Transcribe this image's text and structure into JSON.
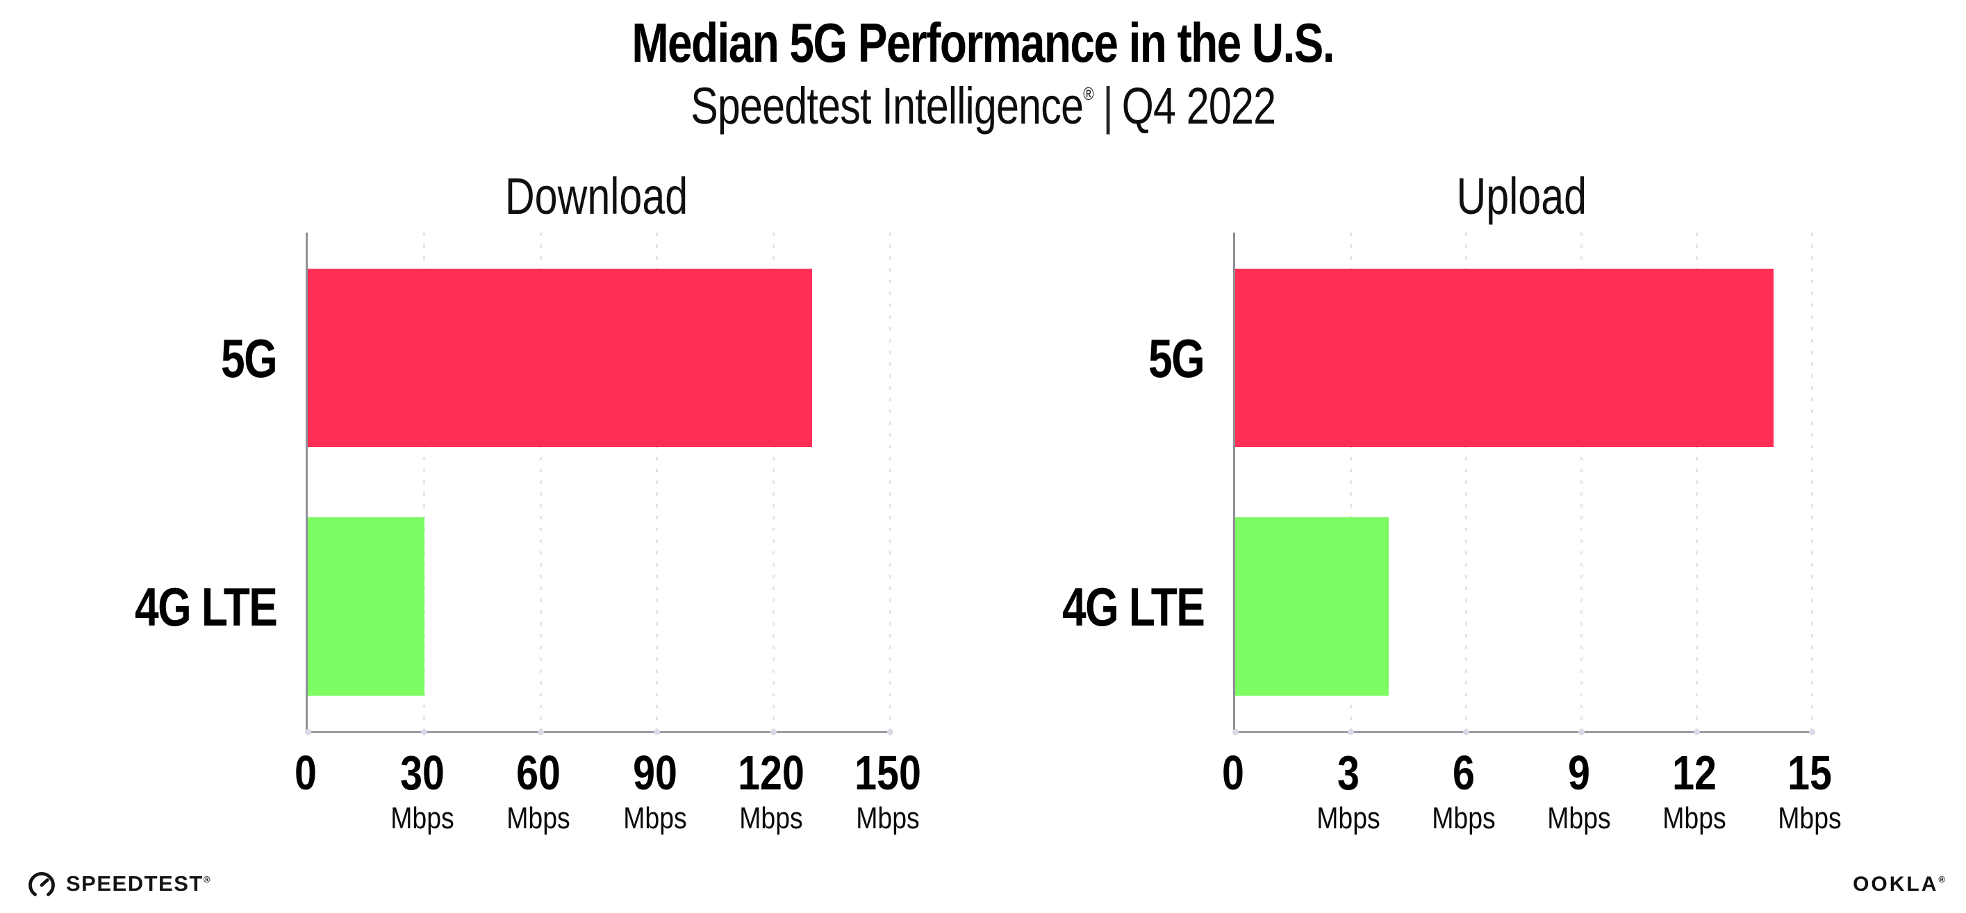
{
  "header": {
    "title": "Median 5G Performance in the U.S.",
    "subtitle_product": "Speedtest Intelligence",
    "subtitle_reg": "®",
    "subtitle_separator": "|",
    "subtitle_period": "Q4 2022"
  },
  "chart_data": [
    {
      "type": "bar",
      "orientation": "horizontal",
      "title": "Download",
      "categories": [
        "5G",
        "4G LTE"
      ],
      "values": [
        130,
        30
      ],
      "unit": "Mbps",
      "xlim": [
        0,
        150
      ],
      "xticks": [
        0,
        30,
        60,
        90,
        120,
        150
      ],
      "bar_colors": [
        "#FF2E56",
        "#7DFC64"
      ],
      "grid": "vertical-dotted",
      "legend": "none"
    },
    {
      "type": "bar",
      "orientation": "horizontal",
      "title": "Upload",
      "categories": [
        "5G",
        "4G LTE"
      ],
      "values": [
        14,
        4
      ],
      "unit": "Mbps",
      "xlim": [
        0,
        15
      ],
      "xticks": [
        0,
        3,
        6,
        9,
        12,
        15
      ],
      "bar_colors": [
        "#FF2E56",
        "#7DFC64"
      ],
      "grid": "vertical-dotted",
      "legend": "none"
    }
  ],
  "footer": {
    "speedtest_label": "SPEEDTEST",
    "speedtest_reg": "®",
    "ookla_label": "OOKLA",
    "ookla_reg": "®"
  },
  "colors": {
    "bar_5g": "#FF2E56",
    "bar_4g_lte": "#7DFC64",
    "axis_line": "#9B9BA3",
    "gridline_dots": "#E4E4EF",
    "tick_dots": "#D9D9E6",
    "text": "#000000",
    "background": "#FFFFFF"
  }
}
